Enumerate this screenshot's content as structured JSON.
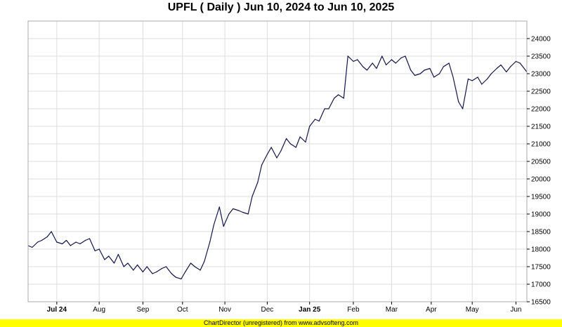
{
  "title": "UPFL ( Daily ) Jun 10, 2024 to Jun 10, 2025",
  "footer": "ChartDirector (unregistered) from www.advsofteng.com",
  "colors": {
    "line": "#14144a",
    "grid": "#dddddd",
    "axis": "#000000",
    "footer_bg": "#ffff00"
  },
  "chart_data": {
    "type": "line",
    "title": "UPFL ( Daily ) Jun 10, 2024 to Jun 10, 2025",
    "xlabel": "",
    "ylabel": "",
    "ylim": [
      16500,
      24500
    ],
    "y_axis_position": "right",
    "grid": true,
    "y_ticks": [
      16500,
      17000,
      17500,
      18000,
      18500,
      19000,
      19500,
      20000,
      20500,
      21000,
      21500,
      22000,
      22500,
      23000,
      23500,
      24000
    ],
    "x_ticks": [
      {
        "label": "Jul 24",
        "bold": true,
        "date": "2024-07-01"
      },
      {
        "label": "Aug",
        "bold": false,
        "date": "2024-08-01"
      },
      {
        "label": "Sep",
        "bold": false,
        "date": "2024-09-02"
      },
      {
        "label": "Oct",
        "bold": false,
        "date": "2024-10-01"
      },
      {
        "label": "Nov",
        "bold": false,
        "date": "2024-11-01"
      },
      {
        "label": "Dec",
        "bold": false,
        "date": "2024-12-02"
      },
      {
        "label": "Jan 25",
        "bold": true,
        "date": "2025-01-02"
      },
      {
        "label": "Feb",
        "bold": false,
        "date": "2025-02-03"
      },
      {
        "label": "Mar",
        "bold": false,
        "date": "2025-03-03"
      },
      {
        "label": "Apr",
        "bold": false,
        "date": "2025-04-01"
      },
      {
        "label": "May",
        "bold": false,
        "date": "2025-05-01"
      },
      {
        "label": "Jun",
        "bold": false,
        "date": "2025-06-02"
      }
    ],
    "x_range": [
      "2024-06-10",
      "2025-06-10"
    ],
    "series": [
      {
        "x": [
          "2024-06-10",
          "2024-06-13",
          "2024-06-17",
          "2024-06-20",
          "2024-06-24",
          "2024-06-27",
          "2024-07-01",
          "2024-07-05",
          "2024-07-08",
          "2024-07-11",
          "2024-07-15",
          "2024-07-18",
          "2024-07-22",
          "2024-07-25",
          "2024-07-29",
          "2024-08-01",
          "2024-08-05",
          "2024-08-08",
          "2024-08-12",
          "2024-08-15",
          "2024-08-19",
          "2024-08-22",
          "2024-08-26",
          "2024-08-29",
          "2024-09-02",
          "2024-09-05",
          "2024-09-09",
          "2024-09-12",
          "2024-09-16",
          "2024-09-19",
          "2024-09-23",
          "2024-09-26",
          "2024-09-30",
          "2024-10-03",
          "2024-10-07",
          "2024-10-10",
          "2024-10-14",
          "2024-10-17",
          "2024-10-21",
          "2024-10-24",
          "2024-10-28",
          "2024-10-31",
          "2024-11-04",
          "2024-11-07",
          "2024-11-11",
          "2024-11-14",
          "2024-11-18",
          "2024-11-21",
          "2024-11-25",
          "2024-11-28",
          "2024-12-02",
          "2024-12-05",
          "2024-12-09",
          "2024-12-12",
          "2024-12-16",
          "2024-12-19",
          "2024-12-23",
          "2024-12-26",
          "2024-12-30",
          "2025-01-02",
          "2025-01-06",
          "2025-01-09",
          "2025-01-13",
          "2025-01-16",
          "2025-01-20",
          "2025-01-23",
          "2025-01-27",
          "2025-01-30",
          "2025-02-03",
          "2025-02-06",
          "2025-02-10",
          "2025-02-13",
          "2025-02-17",
          "2025-02-20",
          "2025-02-24",
          "2025-02-27",
          "2025-03-03",
          "2025-03-06",
          "2025-03-10",
          "2025-03-13",
          "2025-03-17",
          "2025-03-20",
          "2025-03-24",
          "2025-03-27",
          "2025-03-31",
          "2025-04-03",
          "2025-04-07",
          "2025-04-10",
          "2025-04-14",
          "2025-04-17",
          "2025-04-21",
          "2025-04-24",
          "2025-04-28",
          "2025-05-01",
          "2025-05-05",
          "2025-05-08",
          "2025-05-12",
          "2025-05-15",
          "2025-05-19",
          "2025-05-22",
          "2025-05-26",
          "2025-05-29",
          "2025-06-02",
          "2025-06-05",
          "2025-06-10"
        ],
        "y": [
          18100,
          18050,
          18200,
          18250,
          18350,
          18500,
          18200,
          18150,
          18250,
          18100,
          18200,
          18150,
          18250,
          18300,
          17950,
          18000,
          17700,
          17800,
          17600,
          17850,
          17500,
          17600,
          17400,
          17550,
          17350,
          17500,
          17300,
          17350,
          17450,
          17500,
          17300,
          17200,
          17150,
          17350,
          17600,
          17500,
          17400,
          17650,
          18200,
          18700,
          19200,
          18650,
          19000,
          19150,
          19100,
          19050,
          19000,
          19500,
          19900,
          20400,
          20700,
          20900,
          20600,
          20800,
          21150,
          21000,
          20900,
          21200,
          21050,
          21500,
          21700,
          21650,
          22000,
          22000,
          22300,
          22400,
          22300,
          23500,
          23350,
          23400,
          23200,
          23100,
          23300,
          23150,
          23500,
          23250,
          23400,
          23300,
          23450,
          23500,
          23100,
          22950,
          23000,
          23100,
          23150,
          22900,
          23000,
          23200,
          23300,
          22900,
          22200,
          22000,
          22850,
          22800,
          22900,
          22700,
          22850,
          23000,
          23150,
          23250,
          23050,
          23200,
          23350,
          23300,
          23050
        ]
      }
    ]
  }
}
